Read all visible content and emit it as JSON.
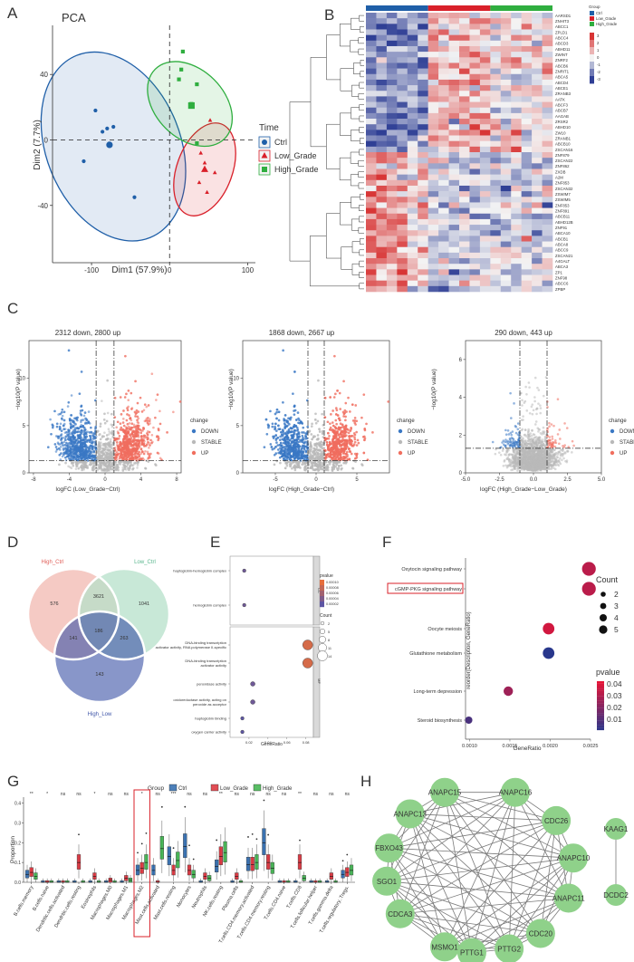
{
  "panel_labels": [
    "A",
    "B",
    "C",
    "D",
    "E",
    "F",
    "G",
    "H"
  ],
  "colors": {
    "ctrl": "#1f5fa8",
    "low_grade": "#d9202a",
    "high_grade": "#2fae3f",
    "heat_low": "#2f3f95",
    "heat_mid": "#f4f4f4",
    "heat_high": "#d83535",
    "volcano_down": "#3a78c4",
    "volcano_stable": "#b9b9b9",
    "volcano_up": "#f06e5e",
    "node_fill": "#8fd18a"
  },
  "chart_data": [
    {
      "id": "A",
      "type": "scatter",
      "title": "PCA",
      "xlabel": "Dim1 (57.9%)",
      "ylabel": "Dim2 (7.7%)",
      "xlim": [
        -150,
        110
      ],
      "ylim": [
        -75,
        70
      ],
      "xticks": [
        -100,
        0,
        100
      ],
      "yticks": [
        -40,
        0,
        40
      ],
      "legend_title": "Time",
      "series": [
        {
          "name": "Ctrl",
          "color": "#1f5fa8",
          "marker": "circle",
          "points": [
            [
              -95,
              18
            ],
            [
              -86,
              5
            ],
            [
              -80,
              7
            ],
            [
              -72,
              8
            ],
            [
              -110,
              -13
            ],
            [
              -45,
              -35
            ]
          ],
          "center": [
            -77,
            -3
          ]
        },
        {
          "name": "Low_Grade",
          "color": "#d9202a",
          "marker": "triangle",
          "points": [
            [
              52,
              12
            ],
            [
              40,
              -8
            ],
            [
              45,
              -14
            ],
            [
              58,
              -20
            ],
            [
              38,
              -26
            ],
            [
              48,
              -32
            ]
          ],
          "center": [
            45,
            -18
          ]
        },
        {
          "name": "High_Grade",
          "color": "#2fae3f",
          "marker": "square",
          "points": [
            [
              17,
              54
            ],
            [
              15,
              43
            ],
            [
              12,
              37
            ],
            [
              35,
              34
            ],
            [
              28,
              22
            ],
            [
              35,
              -2
            ]
          ],
          "center": [
            28,
            21
          ]
        }
      ]
    },
    {
      "id": "B",
      "type": "heatmap",
      "group_legend_title": "Group",
      "groups": [
        "Ctrl",
        "Low_Grade",
        "High_Grade"
      ],
      "scale": [
        3,
        2,
        1,
        0,
        -1,
        -2,
        -3
      ],
      "columns_per_group": 6,
      "genes": [
        "AARSD1",
        "ZNHIT3",
        "ABCC1",
        "ZPLD1",
        "ABCC4",
        "ABCD3",
        "ABHD11",
        "ZWINT",
        "ZNRF2",
        "ABCB6",
        "ZNRIT1",
        "ABCA5",
        "ABCD4",
        "ABCE1",
        "ZRANB3",
        "AATK",
        "ABCF3",
        "ABCB7",
        "AAGAB",
        "ZRSR2",
        "ABHD10",
        "ZW10",
        "ZRANB1",
        "ABCB10",
        "ZSCAN16",
        "ZNF879",
        "ZSCAN22",
        "ZNF862",
        "ZXDB",
        "A2M",
        "ZNF853",
        "ZSCAN32",
        "ZSWIM7",
        "ZSWIM5",
        "ZNF853",
        "ZNF891",
        "ABCB11",
        "ABHD12B",
        "ZNF91",
        "ABCA10",
        "ABCB1",
        "ABCA8",
        "ABCC9",
        "ZSCAN21",
        "A4GALT",
        "ABCA3",
        "ZP1",
        "ZNF98",
        "ABCC6",
        "ZPBP"
      ],
      "cluster_split": 25
    },
    {
      "id": "C1",
      "type": "scatter",
      "title": "2312 down, 2800 up",
      "xlabel": "logFC (Low_Grade−Ctrl)",
      "ylabel": "−log10(P value)",
      "xlim": [
        -8.5,
        8.5
      ],
      "ylim": [
        0,
        14
      ],
      "xticks": [
        -8,
        -4,
        0,
        4,
        8
      ],
      "yticks": [
        0,
        5,
        10
      ],
      "fc_cut": 1,
      "p_cut": 1.3,
      "legend_title": "change",
      "legend": [
        "DOWN",
        "STABLE",
        "UP"
      ],
      "down": 2312,
      "up": 2800
    },
    {
      "id": "C2",
      "type": "scatter",
      "title": "1868 down, 2667 up",
      "xlabel": "logFC (High_Grade−Ctrl)",
      "ylabel": "−log10(P value)",
      "xlim": [
        -9,
        9
      ],
      "ylim": [
        0,
        14
      ],
      "xticks": [
        -5,
        0,
        5
      ],
      "yticks": [
        0,
        5,
        10
      ],
      "fc_cut": 1,
      "p_cut": 1.3,
      "legend_title": "change",
      "legend": [
        "DOWN",
        "STABLE",
        "UP"
      ],
      "down": 1868,
      "up": 2667
    },
    {
      "id": "C3",
      "type": "scatter",
      "title": "290 down, 443 up",
      "xlabel": "logFC (High_Grade−Low_Grade)",
      "ylabel": "−log10(P value)",
      "xlim": [
        -5,
        5
      ],
      "ylim": [
        0,
        7
      ],
      "xticks": [
        -5.0,
        -2.5,
        0.0,
        2.5,
        5.0
      ],
      "xtick_labels": [
        "-5.0",
        "-2.5",
        "0.0",
        "2.5",
        "5.0"
      ],
      "yticks": [
        0,
        2,
        4,
        6
      ],
      "fc_cut": 1,
      "p_cut": 1.3,
      "legend_title": "change",
      "legend": [
        "DOWN",
        "STABLE",
        "UP"
      ],
      "down": 290,
      "up": 443
    },
    {
      "id": "D",
      "type": "venn",
      "sets": [
        "High_Ctrl",
        "Low_Ctrl",
        "High_Low"
      ],
      "set_colors": [
        "#f2b8b0",
        "#b6e0c9",
        "#3f55a8"
      ],
      "regions": {
        "high_ctrl_only": 576,
        "high_ctrl_low_ctrl": 3621,
        "low_ctrl_only": 1041,
        "high_ctrl_high_low": 141,
        "all_three": 186,
        "low_ctrl_high_low": 263,
        "high_low_only": 143
      }
    },
    {
      "id": "E",
      "type": "scatter",
      "xlabel": "GeneRatio",
      "ylabel": "",
      "xlim": [
        0.0,
        0.088
      ],
      "xticks": [
        0.02,
        0.04,
        0.06,
        0.08
      ],
      "xtick_labels": [
        "0.02",
        "0.04",
        "0.06",
        "0.08"
      ],
      "legend_pvalue_title": "pvalue",
      "pvalue_ticks": [
        "0.00010",
        "0.00008",
        "0.00006",
        "0.00004",
        "0.00002"
      ],
      "legend_count_title": "Count",
      "count_ticks": [
        "2",
        "5",
        "8",
        "11",
        "14"
      ],
      "facets": [
        "CC",
        "MF"
      ],
      "terms": [
        {
          "facet": "CC",
          "label": "haptoglobin-hemoglobin complex",
          "gene_ratio": 0.015,
          "count": 2,
          "pvalue": 3e-05
        },
        {
          "facet": "CC",
          "label": "hemoglobin complex",
          "gene_ratio": 0.015,
          "count": 2,
          "pvalue": 3e-05
        },
        {
          "facet": "MF",
          "label": "DNA-binding transcription activator activity, RNA polymerase II-specific",
          "gene_ratio": 0.082,
          "count": 14,
          "pvalue": 9e-05
        },
        {
          "facet": "MF",
          "label": "DNA-binding transcription activator activity",
          "gene_ratio": 0.082,
          "count": 14,
          "pvalue": 9e-05
        },
        {
          "facet": "MF",
          "label": "peroxidase activity",
          "gene_ratio": 0.024,
          "count": 4,
          "pvalue": 3e-05
        },
        {
          "facet": "MF",
          "label": "oxidoreductase activity, acting on peroxide as acceptor",
          "gene_ratio": 0.024,
          "count": 4,
          "pvalue": 3e-05
        },
        {
          "facet": "MF",
          "label": "haptoglobin binding",
          "gene_ratio": 0.013,
          "count": 2,
          "pvalue": 2e-05
        },
        {
          "facet": "MF",
          "label": "oxygen carrier activity",
          "gene_ratio": 0.013,
          "count": 2,
          "pvalue": 2e-05
        }
      ]
    },
    {
      "id": "F",
      "type": "scatter",
      "xlabel": "GeneRatio",
      "ylabel": "reorder(Description, GeneRatio)",
      "xlim": [
        0.00095,
        0.0025
      ],
      "xticks": [
        0.001,
        0.0015,
        0.002,
        0.0025
      ],
      "xtick_labels": [
        "0.0010",
        "0.0015",
        "0.0020",
        "0.0025"
      ],
      "legend_count_title": "Count",
      "count_ticks": [
        2,
        3,
        4,
        5
      ],
      "legend_pvalue_title": "pvalue",
      "pvalue_ticks": [
        "0.04",
        "0.03",
        "0.02",
        "0.01"
      ],
      "highlighted": "cGMP-PKG signaling pathway",
      "terms": [
        {
          "label": "Oxytocin signaling pathway",
          "gene_ratio": 0.00248,
          "count": 5,
          "pvalue": 0.036
        },
        {
          "label": "cGMP-PKG signaling pathway",
          "gene_ratio": 0.00248,
          "count": 5,
          "pvalue": 0.036
        },
        {
          "label": "Oocyte meiosis",
          "gene_ratio": 0.00198,
          "count": 4,
          "pvalue": 0.041
        },
        {
          "label": "Glutathione metabolism",
          "gene_ratio": 0.00198,
          "count": 4,
          "pvalue": 0.005
        },
        {
          "label": "Long-term depression",
          "gene_ratio": 0.00148,
          "count": 3,
          "pvalue": 0.03
        },
        {
          "label": "Steroid biosynthesis",
          "gene_ratio": 0.00099,
          "count": 2,
          "pvalue": 0.012
        }
      ]
    },
    {
      "id": "G",
      "type": "bar",
      "subtype": "boxplot",
      "ylabel": "Proportion",
      "ylim": [
        0,
        0.43
      ],
      "yticks": [
        0.0,
        0.1,
        0.2,
        0.3,
        0.4
      ],
      "legend_title": "Group",
      "groups": [
        "Ctrl",
        "Low_Grade",
        "High_Grade"
      ],
      "highlighted": "Macrophages.M2",
      "categories": [
        "B.cells.memory",
        "B.cells.naive",
        "Dendritic.cells.activated",
        "Dendritic.cells.resting",
        "Eosinophils",
        "Macrophages.M0",
        "Macrophages.M1",
        "Macrophages.M2",
        "Mast.cells.activated",
        "Mast.cells.resting",
        "Monocytes",
        "Neutrophils",
        "NK.cells.resting",
        "Plasma.cells",
        "T.cells.CD4.memory.activated",
        "T.cells.CD4.memory.resting",
        "T.cells.CD4.naive",
        "T.cells.CD8",
        "T.cells.follicular.helper",
        "T.cells.gamma.delta",
        "T.cells.regulatory..Tregs."
      ],
      "significance": [
        "**",
        "*",
        "ns",
        "ns",
        "*",
        "ns",
        "ns",
        "*",
        "ns",
        "***",
        "ns",
        "ns",
        "**",
        "ns",
        "ns",
        "ns",
        "ns",
        "**",
        "ns",
        "ns",
        "ns"
      ],
      "medians": [
        [
          0.04,
          0.05,
          0.03
        ],
        [
          0.0,
          0.0,
          0.0
        ],
        [
          0.0,
          0.0,
          0.0
        ],
        [
          0.0,
          0.1,
          0.0
        ],
        [
          0.0,
          0.03,
          0.0
        ],
        [
          0.0,
          0.01,
          0.0
        ],
        [
          0.0,
          0.02,
          0.01
        ],
        [
          0.06,
          0.07,
          0.1
        ],
        [
          0.06,
          0.0,
          0.17
        ],
        [
          0.13,
          0.06,
          0.11
        ],
        [
          0.18,
          0.06,
          0.04
        ],
        [
          0.0,
          0.03,
          0.02
        ],
        [
          0.08,
          0.13,
          0.15
        ],
        [
          0.0,
          0.03,
          0.0
        ],
        [
          0.09,
          0.09,
          0.1
        ],
        [
          0.2,
          0.1,
          0.07
        ],
        [
          0.0,
          0.0,
          0.0
        ],
        [
          0.0,
          0.1,
          0.02
        ],
        [
          0.0,
          0.0,
          0.0
        ],
        [
          0.0,
          0.03,
          0.0
        ],
        [
          0.04,
          0.05,
          0.06
        ]
      ]
    },
    {
      "id": "H",
      "type": "network",
      "nodes": [
        "ANAPC15",
        "ANAPC16",
        "ANAPC13",
        "CDC26",
        "FBXO43",
        "ANAPC10",
        "SGO1",
        "ANAPC11",
        "CDCA3",
        "CDC20",
        "MSMO1",
        "PTTG2",
        "PTTG1",
        "KAAG1",
        "DCDC2"
      ],
      "edges": [
        [
          "KAAG1",
          "DCDC2"
        ]
      ]
    }
  ]
}
